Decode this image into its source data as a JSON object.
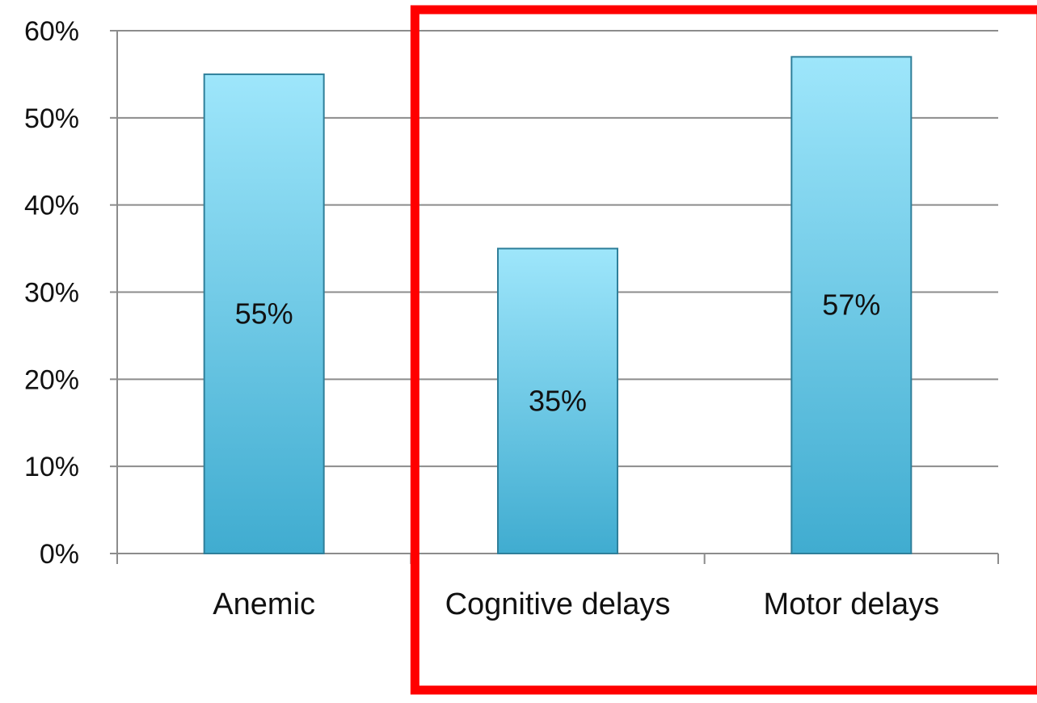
{
  "chart_data": {
    "type": "bar",
    "categories": [
      "Anemic",
      "Cognitive delays",
      "Motor delays"
    ],
    "values": [
      0.55,
      0.35,
      0.57
    ],
    "data_labels": [
      "55%",
      "35%",
      "57%"
    ],
    "title": "",
    "xlabel": "",
    "ylabel": "",
    "ylim": [
      0,
      0.6
    ],
    "y_ticks": [
      0,
      0.1,
      0.2,
      0.3,
      0.4,
      0.5,
      0.6
    ],
    "y_tick_labels": [
      "0%",
      "10%",
      "20%",
      "30%",
      "40%",
      "50%",
      "60%"
    ],
    "grid": true,
    "legend": "none",
    "highlight_box": {
      "covers_categories": [
        "Cognitive delays",
        "Motor delays"
      ],
      "color": "#ff0000"
    },
    "colors": {
      "bar_top": "#9ee6fb",
      "bar_bottom": "#40acd0",
      "bar_stroke": "#2f7f9a",
      "grid": "#8c8c8c",
      "axis": "#8c8c8c"
    }
  }
}
